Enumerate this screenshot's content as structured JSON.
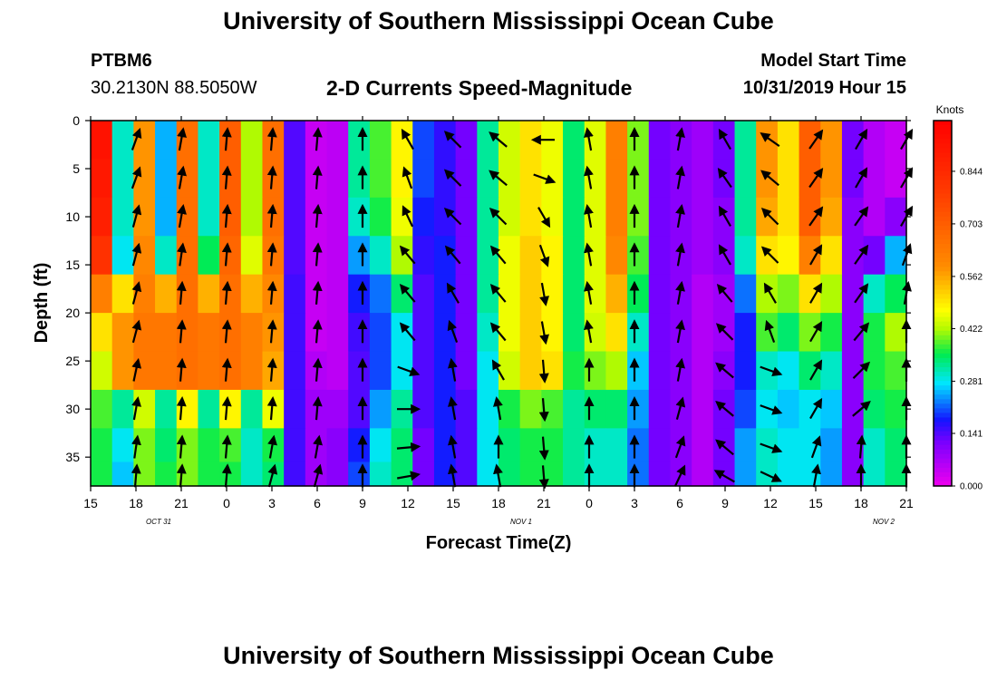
{
  "header": {
    "title_top": "University of Southern Mississippi Ocean Cube",
    "title_bottom": "University of Southern Mississippi Ocean Cube",
    "station": "PTBM6",
    "coords": "30.2130N 88.5050W",
    "subtitle": "2-D Currents Speed-Magnitude",
    "model_start_label": "Model Start Time",
    "model_start_value": "10/31/2019 Hour 15"
  },
  "chart_data": {
    "type": "heatmap",
    "xlabel": "Forecast Time(Z)",
    "ylabel": "Depth (ft)",
    "colorbar_label": "Knots",
    "x_ticks": [
      "15",
      "18",
      "21",
      "0",
      "3",
      "6",
      "9",
      "12",
      "15",
      "18",
      "21",
      "0",
      "3",
      "6",
      "9",
      "12",
      "15",
      "18",
      "21"
    ],
    "date_labels": [
      {
        "text": "OCT 31",
        "at_tick": 1.5
      },
      {
        "text": "NOV 1",
        "at_tick": 9.5
      },
      {
        "text": "NOV 2",
        "at_tick": 17.5
      }
    ],
    "y_ticks": [
      0,
      5,
      10,
      15,
      20,
      25,
      30,
      35
    ],
    "ylim": [
      0,
      38
    ],
    "colorbar_ticks": [
      "0.000",
      "0.141",
      "0.281",
      "0.422",
      "0.562",
      "0.703",
      "0.844"
    ],
    "colorbar_max": 0.98,
    "depths": [
      2,
      6,
      10,
      14,
      18,
      22,
      26,
      30,
      34,
      37
    ],
    "speed_grid": [
      [
        0.92,
        0.3,
        0.58,
        0.25,
        0.66,
        0.3,
        0.7,
        0.42,
        0.66,
        0.14,
        0.04,
        0.05,
        0.32,
        0.38,
        0.48,
        0.2,
        0.16,
        0.12,
        0.32,
        0.44,
        0.5,
        0.46,
        0.34,
        0.45,
        0.62,
        0.4,
        0.12,
        0.1,
        0.08,
        0.12,
        0.32,
        0.58,
        0.5,
        0.7,
        0.58,
        0.12,
        0.06,
        0.04
      ],
      [
        0.9,
        0.3,
        0.58,
        0.25,
        0.66,
        0.3,
        0.7,
        0.42,
        0.66,
        0.14,
        0.04,
        0.05,
        0.32,
        0.38,
        0.48,
        0.2,
        0.16,
        0.12,
        0.32,
        0.44,
        0.5,
        0.46,
        0.34,
        0.45,
        0.62,
        0.4,
        0.12,
        0.1,
        0.08,
        0.12,
        0.32,
        0.58,
        0.5,
        0.7,
        0.58,
        0.12,
        0.06,
        0.04
      ],
      [
        0.88,
        0.3,
        0.58,
        0.25,
        0.66,
        0.3,
        0.7,
        0.42,
        0.66,
        0.14,
        0.04,
        0.05,
        0.3,
        0.36,
        0.46,
        0.18,
        0.16,
        0.12,
        0.32,
        0.44,
        0.5,
        0.46,
        0.34,
        0.45,
        0.62,
        0.4,
        0.12,
        0.1,
        0.08,
        0.1,
        0.32,
        0.56,
        0.5,
        0.7,
        0.56,
        0.1,
        0.06,
        0.1
      ],
      [
        0.82,
        0.28,
        0.6,
        0.3,
        0.66,
        0.35,
        0.68,
        0.45,
        0.64,
        0.14,
        0.04,
        0.05,
        0.24,
        0.3,
        0.42,
        0.16,
        0.18,
        0.12,
        0.32,
        0.46,
        0.52,
        0.48,
        0.34,
        0.45,
        0.6,
        0.38,
        0.12,
        0.1,
        0.08,
        0.1,
        0.3,
        0.5,
        0.48,
        0.62,
        0.5,
        0.1,
        0.12,
        0.25
      ],
      [
        0.62,
        0.5,
        0.62,
        0.55,
        0.66,
        0.55,
        0.66,
        0.55,
        0.6,
        0.15,
        0.04,
        0.05,
        0.18,
        0.22,
        0.34,
        0.14,
        0.18,
        0.12,
        0.32,
        0.46,
        0.52,
        0.48,
        0.34,
        0.45,
        0.55,
        0.35,
        0.12,
        0.1,
        0.06,
        0.08,
        0.22,
        0.42,
        0.4,
        0.5,
        0.42,
        0.1,
        0.3,
        0.35
      ],
      [
        0.5,
        0.58,
        0.64,
        0.64,
        0.66,
        0.64,
        0.66,
        0.62,
        0.58,
        0.15,
        0.04,
        0.05,
        0.15,
        0.2,
        0.28,
        0.14,
        0.18,
        0.12,
        0.3,
        0.46,
        0.52,
        0.48,
        0.34,
        0.44,
        0.5,
        0.3,
        0.12,
        0.1,
        0.06,
        0.08,
        0.18,
        0.38,
        0.34,
        0.4,
        0.36,
        0.1,
        0.36,
        0.42
      ],
      [
        0.44,
        0.58,
        0.64,
        0.64,
        0.66,
        0.64,
        0.66,
        0.62,
        0.56,
        0.15,
        0.06,
        0.05,
        0.14,
        0.2,
        0.28,
        0.14,
        0.18,
        0.12,
        0.28,
        0.44,
        0.52,
        0.5,
        0.36,
        0.4,
        0.42,
        0.26,
        0.12,
        0.1,
        0.06,
        0.1,
        0.18,
        0.3,
        0.28,
        0.34,
        0.3,
        0.1,
        0.36,
        0.38
      ],
      [
        0.38,
        0.32,
        0.44,
        0.32,
        0.48,
        0.32,
        0.48,
        0.32,
        0.46,
        0.15,
        0.08,
        0.08,
        0.14,
        0.24,
        0.32,
        0.14,
        0.18,
        0.14,
        0.28,
        0.36,
        0.4,
        0.38,
        0.32,
        0.34,
        0.34,
        0.24,
        0.12,
        0.1,
        0.06,
        0.12,
        0.2,
        0.28,
        0.26,
        0.28,
        0.26,
        0.1,
        0.34,
        0.36
      ],
      [
        0.36,
        0.28,
        0.4,
        0.34,
        0.4,
        0.36,
        0.38,
        0.3,
        0.36,
        0.15,
        0.08,
        0.1,
        0.18,
        0.28,
        0.34,
        0.12,
        0.18,
        0.14,
        0.28,
        0.34,
        0.36,
        0.36,
        0.32,
        0.3,
        0.3,
        0.22,
        0.12,
        0.1,
        0.06,
        0.12,
        0.24,
        0.3,
        0.28,
        0.28,
        0.24,
        0.1,
        0.3,
        0.34
      ],
      [
        0.36,
        0.26,
        0.4,
        0.36,
        0.4,
        0.36,
        0.36,
        0.3,
        0.34,
        0.15,
        0.08,
        0.1,
        0.2,
        0.3,
        0.34,
        0.12,
        0.18,
        0.14,
        0.28,
        0.34,
        0.36,
        0.36,
        0.32,
        0.3,
        0.3,
        0.22,
        0.12,
        0.1,
        0.06,
        0.12,
        0.24,
        0.3,
        0.28,
        0.28,
        0.24,
        0.1,
        0.3,
        0.34
      ]
    ],
    "vector_columns": [
      1,
      2,
      3,
      4,
      5,
      6,
      7,
      8,
      9,
      10,
      11,
      12,
      13,
      14,
      15,
      16,
      17,
      18
    ],
    "vector_depths": [
      2,
      6,
      10,
      14,
      18,
      22,
      26,
      30,
      34,
      37
    ],
    "vectors": [
      {
        "col": 1,
        "dir": [
          20,
          20,
          15,
          15,
          15,
          15,
          12,
          10,
          8,
          5
        ]
      },
      {
        "col": 2,
        "dir": [
          10,
          10,
          10,
          8,
          5,
          5,
          5,
          5,
          5,
          5
        ]
      },
      {
        "col": 3,
        "dir": [
          5,
          5,
          5,
          5,
          5,
          5,
          5,
          5,
          5,
          5
        ]
      },
      {
        "col": 4,
        "dir": [
          5,
          5,
          5,
          5,
          5,
          5,
          5,
          5,
          10,
          15
        ]
      },
      {
        "col": 5,
        "dir": [
          5,
          5,
          5,
          5,
          5,
          5,
          5,
          5,
          10,
          15
        ]
      },
      {
        "col": 6,
        "dir": [
          0,
          0,
          0,
          0,
          0,
          0,
          0,
          0,
          0,
          0
        ]
      },
      {
        "col": 7,
        "dir": [
          -30,
          -20,
          -25,
          -40,
          -40,
          -40,
          110,
          90,
          85,
          80
        ]
      },
      {
        "col": 8,
        "dir": [
          -45,
          -45,
          -45,
          -40,
          -30,
          -20,
          -10,
          -10,
          -10,
          -10
        ]
      },
      {
        "col": 9,
        "dir": [
          -50,
          -50,
          -45,
          -40,
          -40,
          -40,
          -30,
          -10,
          0,
          -10
        ]
      },
      {
        "col": 10,
        "dir": [
          -90,
          110,
          150,
          160,
          170,
          170,
          175,
          175,
          175,
          175
        ]
      },
      {
        "col": 11,
        "dir": [
          -10,
          -10,
          -10,
          -10,
          -10,
          -10,
          0,
          0,
          0,
          0
        ]
      },
      {
        "col": 12,
        "dir": [
          0,
          0,
          0,
          0,
          0,
          0,
          0,
          0,
          0,
          0
        ]
      },
      {
        "col": 13,
        "dir": [
          10,
          10,
          10,
          10,
          10,
          10,
          10,
          15,
          20,
          25
        ]
      },
      {
        "col": 14,
        "dir": [
          -30,
          -35,
          -30,
          -30,
          -40,
          -45,
          -50,
          -50,
          -50,
          -60
        ]
      },
      {
        "col": 15,
        "dir": [
          -55,
          -50,
          -45,
          -45,
          -30,
          -20,
          110,
          110,
          110,
          115
        ]
      },
      {
        "col": 16,
        "dir": [
          35,
          35,
          35,
          30,
          30,
          30,
          30,
          30,
          20,
          10
        ]
      },
      {
        "col": 17,
        "dir": [
          30,
          30,
          35,
          35,
          35,
          40,
          45,
          50,
          5,
          0
        ]
      },
      {
        "col": 18,
        "dir": [
          30,
          30,
          30,
          20,
          10,
          0,
          0,
          0,
          0,
          0
        ]
      }
    ]
  }
}
